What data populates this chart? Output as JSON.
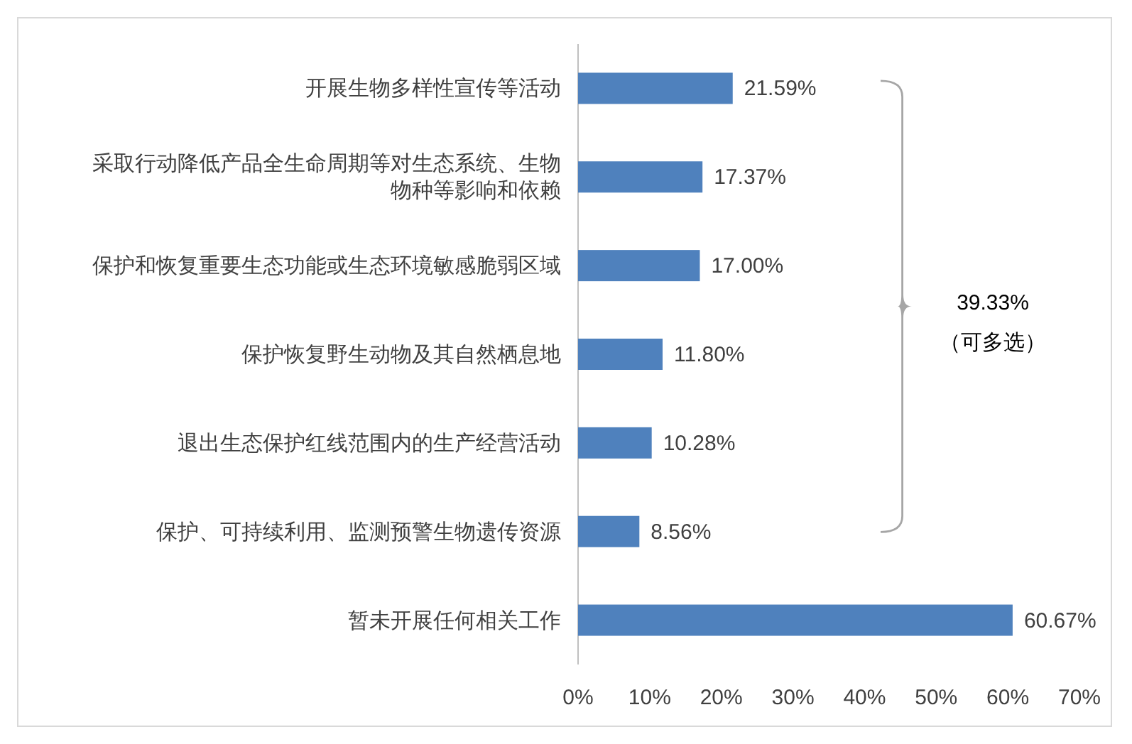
{
  "chart_data": {
    "type": "bar",
    "orientation": "horizontal",
    "categories": [
      "开展生物多样性宣传等活动",
      "采取行动降低产品全生命周期等对生态系统、生物物种等影响和依赖",
      "保护和恢复重要生态功能或生态环境敏感脆弱区域",
      "保护恢复野生动物及其自然栖息地",
      "退出生态保护红线范围内的生产经营活动",
      "保护、可持续利用、监测预警生物遗传资源",
      "暂未开展任何相关工作"
    ],
    "values": [
      21.59,
      17.37,
      17.0,
      11.8,
      10.28,
      8.56,
      60.67
    ],
    "value_labels": [
      "21.59%",
      "17.37%",
      "17.00%",
      "11.80%",
      "10.28%",
      "8.56%",
      "60.67%"
    ],
    "color": "#4f81bd",
    "xlim": [
      0,
      70
    ],
    "xticks": [
      {
        "value": 0,
        "label": "0%"
      },
      {
        "value": 10,
        "label": "10%"
      },
      {
        "value": 20,
        "label": "20%"
      },
      {
        "value": 30,
        "label": "30%"
      },
      {
        "value": 40,
        "label": "40%"
      },
      {
        "value": 50,
        "label": "50%"
      },
      {
        "value": 60,
        "label": "60%"
      },
      {
        "value": 70,
        "label": "70%"
      }
    ],
    "grid": false,
    "annotations": [
      "39.33%",
      "（可多选）"
    ]
  }
}
